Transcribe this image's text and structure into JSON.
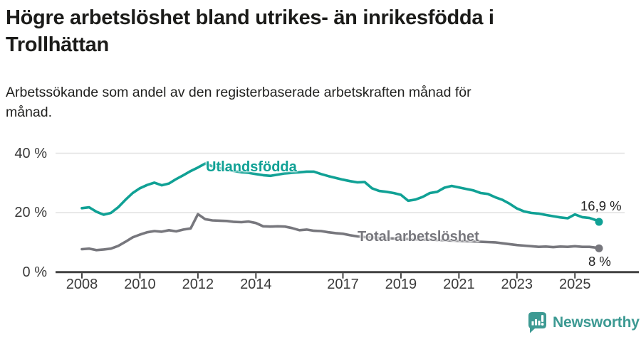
{
  "header": {
    "title_lines": [
      "Högre arbetslöshet bland utrikes- än inrikesfödda i",
      "Trollhättan"
    ],
    "subtitle_lines": [
      "Arbetssökande som andel av den registerbaserade arbetskraften månad för",
      "månad."
    ]
  },
  "chart_data": {
    "type": "line",
    "title": "Högre arbetslöshet bland utrikes- än inrikesfödda i Trollhättan",
    "subtitle": "Arbetssökande som andel av den registerbaserade arbetskraften månad för månad.",
    "xlabel": "",
    "ylabel": "",
    "x_range": [
      2008,
      2025.83
    ],
    "ylim": [
      0,
      44
    ],
    "grid": "horizontal",
    "legend_position": "inline-labels",
    "x_ticks": [
      2008,
      2010,
      2012,
      2014,
      2017,
      2019,
      2021,
      2023,
      2025
    ],
    "y_ticks": [
      {
        "value": 0,
        "label": "0 %"
      },
      {
        "value": 20,
        "label": "20 %"
      },
      {
        "value": 40,
        "label": "40 %"
      }
    ],
    "x": [
      2008,
      2008.25,
      2008.5,
      2008.75,
      2009,
      2009.25,
      2009.5,
      2009.75,
      2010,
      2010.25,
      2010.5,
      2010.75,
      2011,
      2011.25,
      2011.5,
      2011.75,
      2012,
      2012.25,
      2012.5,
      2012.75,
      2013,
      2013.25,
      2013.5,
      2013.75,
      2014,
      2014.25,
      2014.5,
      2014.75,
      2015,
      2015.25,
      2015.5,
      2015.75,
      2016,
      2016.25,
      2016.5,
      2016.75,
      2017,
      2017.25,
      2017.5,
      2017.75,
      2018,
      2018.25,
      2018.5,
      2018.75,
      2019,
      2019.25,
      2019.5,
      2019.75,
      2020,
      2020.25,
      2020.5,
      2020.75,
      2021,
      2021.25,
      2021.5,
      2021.75,
      2022,
      2022.25,
      2022.5,
      2022.75,
      2023,
      2023.25,
      2023.5,
      2023.75,
      2024,
      2024.25,
      2024.5,
      2024.75,
      2025,
      2025.25,
      2025.5,
      2025.75,
      2025.83
    ],
    "series": [
      {
        "name": "Utlandsfödda",
        "color": "#10a195",
        "end_label": "16,9 %",
        "end_value": 16.9,
        "values": [
          21.5,
          21.8,
          20.3,
          19.3,
          19.9,
          21.8,
          24.3,
          26.6,
          28.2,
          29.3,
          30.1,
          29.2,
          29.8,
          31.3,
          32.6,
          34.0,
          35.2,
          36.5,
          35.6,
          35.0,
          34.4,
          34.0,
          33.6,
          33.4,
          33.0,
          32.6,
          32.4,
          32.8,
          33.2,
          33.4,
          33.6,
          33.8,
          33.8,
          33.0,
          32.3,
          31.7,
          31.1,
          30.6,
          30.2,
          30.3,
          28.2,
          27.3,
          27.0,
          26.6,
          26.0,
          24.0,
          24.4,
          25.3,
          26.6,
          27.0,
          28.4,
          29.0,
          28.5,
          28.0,
          27.5,
          26.6,
          26.3,
          25.2,
          24.3,
          23.0,
          21.4,
          20.4,
          19.9,
          19.7,
          19.2,
          18.8,
          18.4,
          18.1,
          19.4,
          18.5,
          18.2,
          17.4,
          16.9
        ]
      },
      {
        "name": "Total arbetslöshet",
        "color": "#77777d",
        "end_label": "8 %",
        "end_value": 8,
        "values": [
          7.7,
          7.9,
          7.4,
          7.6,
          7.9,
          8.8,
          10.2,
          11.7,
          12.6,
          13.4,
          13.8,
          13.6,
          14.1,
          13.7,
          14.3,
          14.7,
          19.5,
          17.8,
          17.4,
          17.3,
          17.2,
          16.9,
          16.8,
          17.0,
          16.5,
          15.4,
          15.3,
          15.4,
          15.3,
          14.8,
          14.1,
          14.3,
          13.9,
          13.8,
          13.4,
          13.1,
          12.9,
          12.4,
          12.0,
          11.8,
          11.7,
          11.5,
          11.4,
          11.3,
          11.2,
          11.1,
          11.0,
          10.9,
          10.9,
          10.8,
          10.7,
          10.6,
          10.5,
          10.4,
          10.3,
          10.2,
          10.1,
          10.0,
          9.7,
          9.4,
          9.1,
          8.9,
          8.7,
          8.5,
          8.6,
          8.4,
          8.6,
          8.5,
          8.7,
          8.5,
          8.5,
          8.2,
          8.0
        ]
      }
    ],
    "colors": {
      "axis": "#424242",
      "gridline": "#e1e1e1",
      "tick_text": "#3a3a3a"
    }
  },
  "branding": {
    "logo_text": "Newsworthy",
    "logo_color": "#3d9a93",
    "icon": "bar-chart-bubble-icon"
  }
}
